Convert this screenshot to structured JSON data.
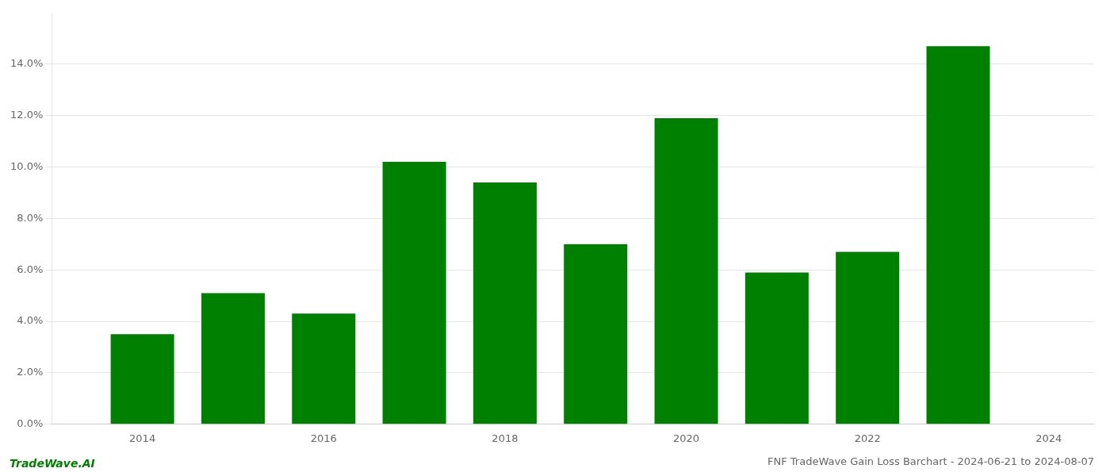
{
  "chart_data": {
    "type": "bar",
    "title": "FNF TradeWave Gain Loss Barchart - 2024-06-21 to 2024-08-07",
    "annotations": [
      {
        "text": "TradeWave.AI",
        "color": "#008000"
      }
    ],
    "x": [
      2014,
      2015,
      2016,
      2017,
      2018,
      2019,
      2020,
      2021,
      2022,
      2023
    ],
    "values": [
      0.035,
      0.051,
      0.043,
      0.102,
      0.094,
      0.07,
      0.119,
      0.059,
      0.067,
      0.147
    ],
    "color": "#008000",
    "xlim": [
      2013.0,
      2024.5
    ],
    "xticks": [
      2014,
      2016,
      2018,
      2020,
      2022,
      2024
    ],
    "ylim": [
      0,
      0.16
    ],
    "yticks": [
      {
        "value": 0.0,
        "label": "0.0%"
      },
      {
        "value": 0.02,
        "label": "2.0%"
      },
      {
        "value": 0.04,
        "label": "4.0%"
      },
      {
        "value": 0.06,
        "label": "6.0%"
      },
      {
        "value": 0.08,
        "label": "8.0%"
      },
      {
        "value": 0.1,
        "label": "10.0%"
      },
      {
        "value": 0.12,
        "label": "12.0%"
      },
      {
        "value": 0.14,
        "label": "14.0%"
      }
    ],
    "grid": "y"
  }
}
